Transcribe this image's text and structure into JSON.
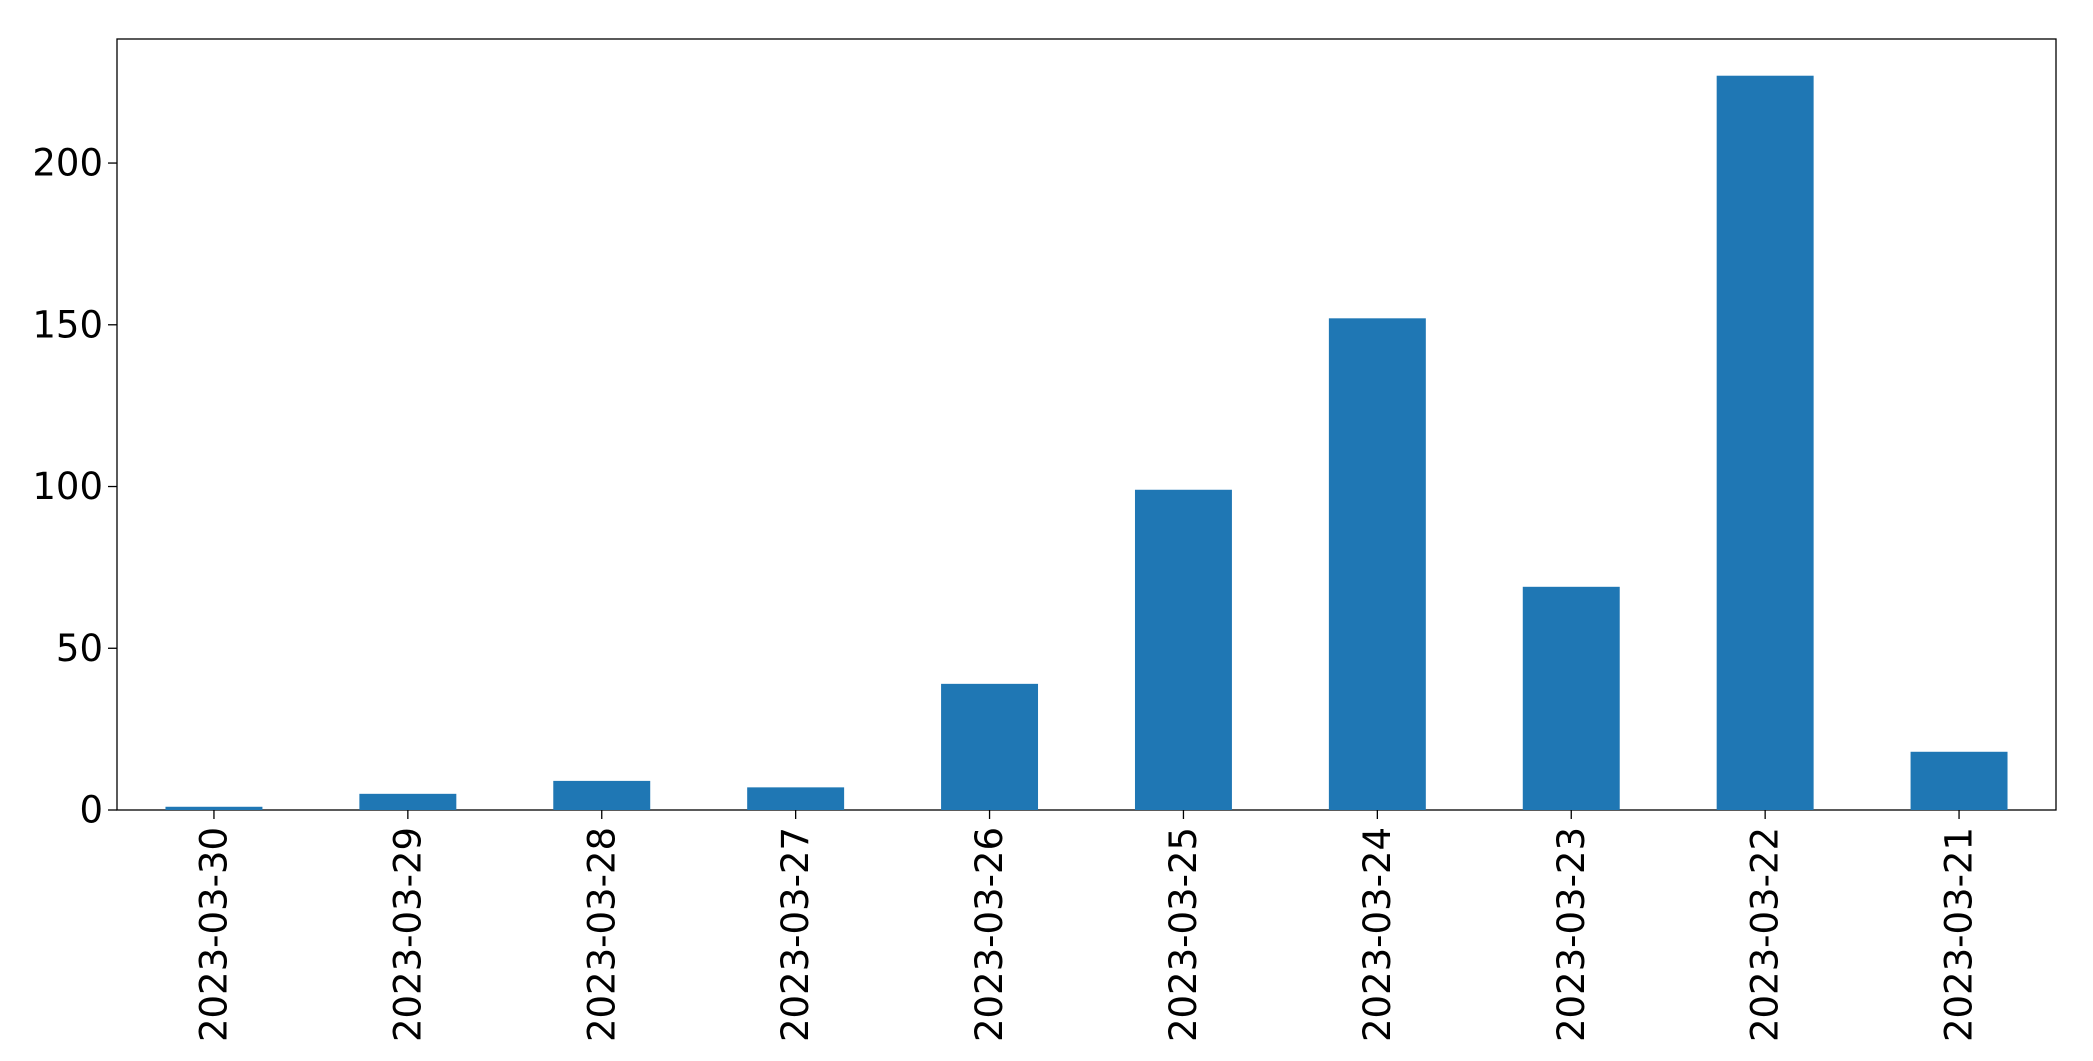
{
  "chart_data": {
    "type": "bar",
    "title": "",
    "xlabel": "",
    "ylabel": "",
    "categories": [
      "2023-03-30",
      "2023-03-29",
      "2023-03-28",
      "2023-03-27",
      "2023-03-26",
      "2023-03-25",
      "2023-03-24",
      "2023-03-23",
      "2023-03-22",
      "2023-03-21"
    ],
    "values": [
      1,
      5,
      9,
      7,
      39,
      99,
      152,
      69,
      227,
      18
    ],
    "ylim": [
      0,
      238.35
    ],
    "yticks": [
      0,
      50,
      100,
      150,
      200
    ],
    "ytick_labels": [
      "0",
      "50",
      "100",
      "150",
      "200"
    ],
    "bar_color": "#1f77b4",
    "grid": false,
    "legend": "none",
    "xtick_rotation": "vertical"
  }
}
